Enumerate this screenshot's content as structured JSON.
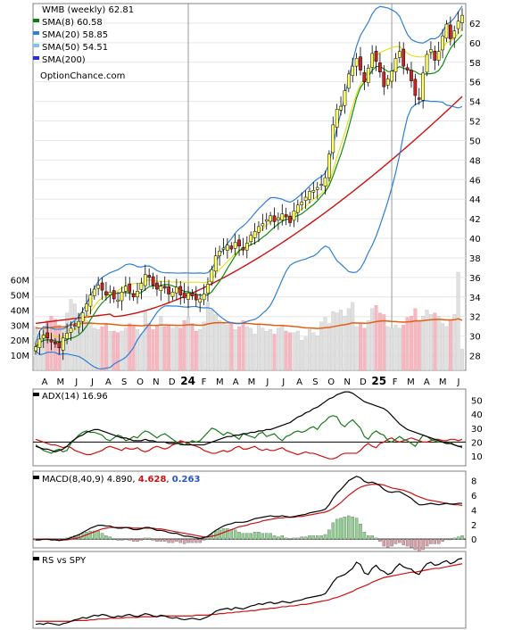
{
  "chart_data": [
    {
      "type": "candlestick",
      "title": "WMB (weekly) 62.81",
      "watermark": "OptionChance.com",
      "ylim": [
        26.5,
        64
      ],
      "yticks": [
        28,
        30,
        32,
        34,
        36,
        38,
        40,
        42,
        44,
        46,
        48,
        50,
        52,
        54,
        56,
        58,
        60,
        62
      ],
      "xlabels": [
        "A",
        "M",
        "J",
        "J",
        "A",
        "S",
        "O",
        "N",
        "D",
        "24",
        "F",
        "M",
        "A",
        "M",
        "J",
        "J",
        "A",
        "S",
        "O",
        "N",
        "D",
        "25",
        "F",
        "M",
        "A",
        "M",
        "J"
      ],
      "legend": [
        {
          "label": "SMA(8) 60.58",
          "color": "#0a7a0a"
        },
        {
          "label": "SMA(20) 58.85",
          "color": "#2f7fd6"
        },
        {
          "label": "SMA(50) 54.51",
          "color": "#7fc4ee"
        },
        {
          "label": "SMA(200)",
          "color": "#2a2aee"
        }
      ],
      "colors": {
        "sma8": "#128a12",
        "bollinger": "#2f7fd6",
        "sma50": "#dddd00",
        "sma200": "#cc1111",
        "up": "#ffff66",
        "down": "#cc2222"
      },
      "closes": [
        28.9,
        29.7,
        30.1,
        29.8,
        29.4,
        29.2,
        28.8,
        29.8,
        30.3,
        30.8,
        31.1,
        31.5,
        32.4,
        33.3,
        34.2,
        34.8,
        35.2,
        34.7,
        34.2,
        34.5,
        33.8,
        33.7,
        34.5,
        35.1,
        34.5,
        34.0,
        34.6,
        35.4,
        36.3,
        36.0,
        35.2,
        34.8,
        35.1,
        34.9,
        34.3,
        34.5,
        35.0,
        34.2,
        33.9,
        34.4,
        34.1,
        33.7,
        33.8,
        34.3,
        35.3,
        36.8,
        38.2,
        38.7,
        39.0,
        39.3,
        38.9,
        39.6,
        39.2,
        38.8,
        39.5,
        40.3,
        40.7,
        41.2,
        41.5,
        41.9,
        42.3,
        41.7,
        42.1,
        42.5,
        42.2,
        41.6,
        42.8,
        43.4,
        43.7,
        44.2,
        44.8,
        44.9,
        45.2,
        45.5,
        46.2,
        48.6,
        51.6,
        53.2,
        53.5,
        55.1,
        56.8,
        57.6,
        58.4,
        57.2,
        56.0,
        57.4,
        58.9,
        58.1,
        57.0,
        55.5,
        56.3,
        57.1,
        58.4,
        59.1,
        57.6,
        57.2,
        56.1,
        54.6,
        54.2,
        56.9,
        58.8,
        59.3,
        58.2,
        59.1,
        60.7,
        61.9,
        60.4,
        61.2,
        62.2,
        62.8
      ]
    },
    {
      "type": "bar",
      "ylabel_ticks": [
        "60M",
        "50M",
        "40M",
        "30M",
        "20M",
        "10M"
      ],
      "ylim": [
        0,
        68
      ],
      "avg_line_color": "#e06010",
      "values": [
        29,
        24,
        27,
        33,
        36,
        34,
        30,
        28,
        38,
        47,
        44,
        38,
        34,
        33,
        31,
        28,
        27,
        29,
        31,
        26,
        26,
        25,
        26,
        28,
        31,
        29,
        27,
        24,
        39,
        31,
        27,
        30,
        36,
        29,
        30,
        28,
        29,
        28,
        33,
        35,
        31,
        26,
        27,
        32,
        45,
        40,
        37,
        33,
        31,
        30,
        32,
        27,
        29,
        33,
        29,
        28,
        24,
        30,
        28,
        26,
        27,
        24,
        28,
        30,
        26,
        25,
        25,
        26,
        20,
        22,
        27,
        25,
        23,
        32,
        35,
        31,
        39,
        38,
        40,
        36,
        41,
        45,
        29,
        31,
        28,
        33,
        41,
        43,
        38,
        37,
        29,
        28,
        30,
        28,
        30,
        35,
        36,
        41,
        33,
        36,
        40,
        37,
        38,
        36,
        31,
        29,
        33,
        37,
        65,
        14
      ],
      "colors": {
        "up": "#e0e0e0",
        "down": "#f4b8c0"
      }
    },
    {
      "type": "line",
      "title": "ADX(14) 16.96",
      "yticks": [
        10,
        20,
        30,
        40,
        50
      ],
      "ylim": [
        3,
        58
      ],
      "series": [
        {
          "color": "#000000",
          "values": [
            17,
            16,
            15,
            15,
            14,
            13,
            14,
            15,
            17,
            20,
            22,
            24,
            25,
            27,
            28,
            29,
            29,
            28,
            27,
            26,
            25,
            24,
            23,
            23,
            22,
            21,
            21,
            21,
            22,
            21,
            21,
            20,
            20,
            20,
            19,
            19,
            19,
            19,
            18,
            18,
            18,
            18,
            18,
            18,
            19,
            20,
            21,
            22,
            23,
            24,
            24,
            25,
            25,
            26,
            26,
            27,
            27,
            28,
            28,
            29,
            29,
            30,
            31,
            32,
            33,
            34,
            36,
            38,
            39,
            41,
            42,
            44,
            45,
            47,
            49,
            51,
            52,
            54,
            55,
            56,
            56,
            55,
            53,
            51,
            49,
            48,
            47,
            46,
            45,
            44,
            42,
            39,
            36,
            33,
            31,
            29,
            28,
            27,
            26,
            25,
            24,
            23,
            22,
            21,
            20,
            19,
            19,
            18,
            17,
            17
          ]
        },
        {
          "color": "#1a7a1a",
          "values": [
            18,
            16,
            14,
            13,
            12,
            14,
            15,
            13,
            14,
            19,
            22,
            25,
            27,
            28,
            27,
            27,
            26,
            25,
            22,
            21,
            23,
            25,
            24,
            21,
            22,
            24,
            23,
            26,
            28,
            27,
            25,
            23,
            25,
            26,
            24,
            22,
            20,
            18,
            18,
            19,
            21,
            20,
            21,
            24,
            27,
            30,
            29,
            27,
            25,
            27,
            26,
            24,
            22,
            26,
            25,
            24,
            23,
            26,
            27,
            24,
            25,
            26,
            23,
            21,
            24,
            25,
            27,
            28,
            27,
            28,
            30,
            31,
            29,
            33,
            35,
            38,
            39,
            38,
            33,
            31,
            34,
            36,
            33,
            30,
            24,
            22,
            26,
            28,
            26,
            25,
            21,
            20,
            22,
            24,
            22,
            21,
            19,
            17,
            21,
            25,
            24,
            22,
            21,
            20,
            20,
            19,
            20,
            18,
            17,
            16
          ]
        },
        {
          "color": "#cc1111",
          "values": [
            22,
            21,
            20,
            19,
            18,
            18,
            17,
            16,
            17,
            16,
            14,
            13,
            12,
            11,
            11,
            12,
            13,
            14,
            16,
            17,
            16,
            15,
            14,
            16,
            15,
            15,
            16,
            14,
            13,
            14,
            16,
            17,
            16,
            15,
            16,
            18,
            19,
            21,
            20,
            19,
            18,
            17,
            16,
            14,
            13,
            12,
            12,
            13,
            14,
            13,
            14,
            16,
            17,
            15,
            15,
            16,
            17,
            15,
            14,
            15,
            14,
            14,
            15,
            16,
            14,
            13,
            12,
            11,
            12,
            13,
            12,
            12,
            11,
            10,
            9,
            8,
            8,
            9,
            11,
            12,
            12,
            12,
            12,
            14,
            17,
            19,
            17,
            16,
            19,
            20,
            22,
            23,
            21,
            20,
            21,
            22,
            23,
            22,
            21,
            20,
            20,
            21,
            22,
            22,
            21,
            21,
            22,
            22,
            21,
            22
          ]
        }
      ]
    },
    {
      "type": "line",
      "title": "MACD(8,40,9)",
      "value_text": "4.890,",
      "signal_text": "4.628",
      "histogram_text": "0.263",
      "yticks": [
        0,
        2,
        4,
        6,
        8
      ],
      "ylim": [
        -1.2,
        9.3
      ],
      "series": [
        {
          "color": "#000000",
          "values": [
            -0.1,
            -0.1,
            0.0,
            0.0,
            -0.1,
            -0.1,
            -0.2,
            -0.1,
            0.0,
            0.2,
            0.4,
            0.6,
            0.9,
            1.2,
            1.5,
            1.7,
            1.9,
            1.9,
            1.8,
            1.8,
            1.6,
            1.5,
            1.5,
            1.6,
            1.5,
            1.3,
            1.3,
            1.4,
            1.6,
            1.6,
            1.4,
            1.2,
            1.2,
            1.1,
            0.9,
            0.8,
            0.8,
            0.6,
            0.4,
            0.4,
            0.3,
            0.2,
            0.1,
            0.2,
            0.4,
            0.8,
            1.2,
            1.5,
            1.8,
            2.0,
            2.1,
            2.3,
            2.3,
            2.3,
            2.4,
            2.6,
            2.8,
            2.9,
            3.0,
            3.1,
            3.2,
            3.1,
            3.1,
            3.2,
            3.1,
            3.0,
            3.1,
            3.2,
            3.3,
            3.4,
            3.6,
            3.7,
            3.8,
            3.9,
            4.1,
            4.7,
            5.6,
            6.3,
            6.8,
            7.4,
            8.0,
            8.3,
            8.6,
            8.4,
            7.9,
            7.7,
            7.8,
            7.6,
            7.3,
            6.8,
            6.5,
            6.4,
            6.5,
            6.5,
            6.2,
            5.9,
            5.6,
            5.1,
            4.7,
            4.7,
            4.8,
            4.9,
            4.8,
            4.7,
            4.8,
            4.9,
            4.8,
            4.8,
            4.9,
            4.9
          ]
        },
        {
          "color": "#cc1111",
          "values": [
            0.0,
            0.0,
            0.0,
            0.0,
            0.0,
            -0.1,
            -0.1,
            -0.1,
            -0.1,
            0.0,
            0.1,
            0.2,
            0.4,
            0.6,
            0.8,
            1.0,
            1.2,
            1.4,
            1.5,
            1.6,
            1.6,
            1.6,
            1.6,
            1.6,
            1.6,
            1.5,
            1.5,
            1.5,
            1.5,
            1.5,
            1.5,
            1.4,
            1.4,
            1.3,
            1.2,
            1.1,
            1.0,
            0.9,
            0.8,
            0.7,
            0.6,
            0.5,
            0.4,
            0.3,
            0.3,
            0.4,
            0.5,
            0.7,
            0.9,
            1.1,
            1.3,
            1.5,
            1.7,
            1.8,
            1.9,
            2.1,
            2.2,
            2.3,
            2.5,
            2.6,
            2.7,
            2.8,
            2.9,
            2.9,
            3.0,
            3.0,
            3.0,
            3.1,
            3.1,
            3.2,
            3.3,
            3.4,
            3.5,
            3.6,
            3.7,
            3.9,
            4.2,
            4.6,
            5.0,
            5.5,
            6.0,
            6.4,
            6.8,
            7.1,
            7.3,
            7.4,
            7.5,
            7.5,
            7.5,
            7.4,
            7.2,
            7.0,
            6.9,
            6.8,
            6.7,
            6.5,
            6.3,
            6.0,
            5.8,
            5.6,
            5.4,
            5.3,
            5.2,
            5.1,
            5.0,
            4.9,
            4.8,
            4.7,
            4.7,
            4.6
          ]
        }
      ],
      "histogram_color": "#8fcf8f"
    },
    {
      "type": "line",
      "title": "RS vs SPY",
      "ylim": [
        0,
        100
      ],
      "series": [
        {
          "color": "#000000",
          "values": [
            5,
            6,
            5,
            7,
            6,
            5,
            4,
            6,
            7,
            9,
            11,
            12,
            14,
            13,
            15,
            17,
            16,
            18,
            17,
            15,
            14,
            16,
            15,
            17,
            18,
            16,
            15,
            17,
            19,
            18,
            16,
            15,
            17,
            16,
            14,
            13,
            14,
            12,
            11,
            12,
            13,
            12,
            11,
            13,
            15,
            18,
            22,
            24,
            25,
            26,
            24,
            27,
            26,
            25,
            27,
            29,
            30,
            32,
            31,
            33,
            34,
            32,
            33,
            35,
            34,
            33,
            35,
            36,
            37,
            39,
            40,
            41,
            42,
            43,
            45,
            52,
            60,
            66,
            68,
            70,
            74,
            78,
            86,
            83,
            72,
            70,
            78,
            82,
            76,
            74,
            70,
            72,
            79,
            84,
            80,
            78,
            77,
            72,
            70,
            78,
            84,
            86,
            82,
            83,
            86,
            88,
            84,
            86,
            90,
            91
          ]
        },
        {
          "color": "#cc1111",
          "values": [
            9,
            9,
            9,
            9,
            9,
            9,
            9,
            9,
            9,
            9,
            10,
            10,
            10,
            10,
            11,
            11,
            12,
            12,
            12,
            13,
            13,
            13,
            13,
            14,
            14,
            14,
            14,
            15,
            15,
            15,
            15,
            15,
            16,
            16,
            16,
            16,
            16,
            16,
            16,
            16,
            16,
            17,
            17,
            17,
            17,
            18,
            18,
            19,
            19,
            20,
            20,
            21,
            21,
            22,
            22,
            23,
            23,
            24,
            25,
            25,
            26,
            26,
            27,
            28,
            28,
            29,
            29,
            30,
            31,
            31,
            32,
            33,
            34,
            35,
            36,
            37,
            39,
            40,
            42,
            44,
            46,
            48,
            51,
            53,
            55,
            57,
            60,
            62,
            64,
            66,
            67,
            68,
            69,
            70,
            71,
            72,
            73,
            73,
            74,
            75,
            76,
            77,
            78,
            78,
            79,
            80,
            81,
            82,
            83,
            84
          ]
        }
      ]
    }
  ]
}
